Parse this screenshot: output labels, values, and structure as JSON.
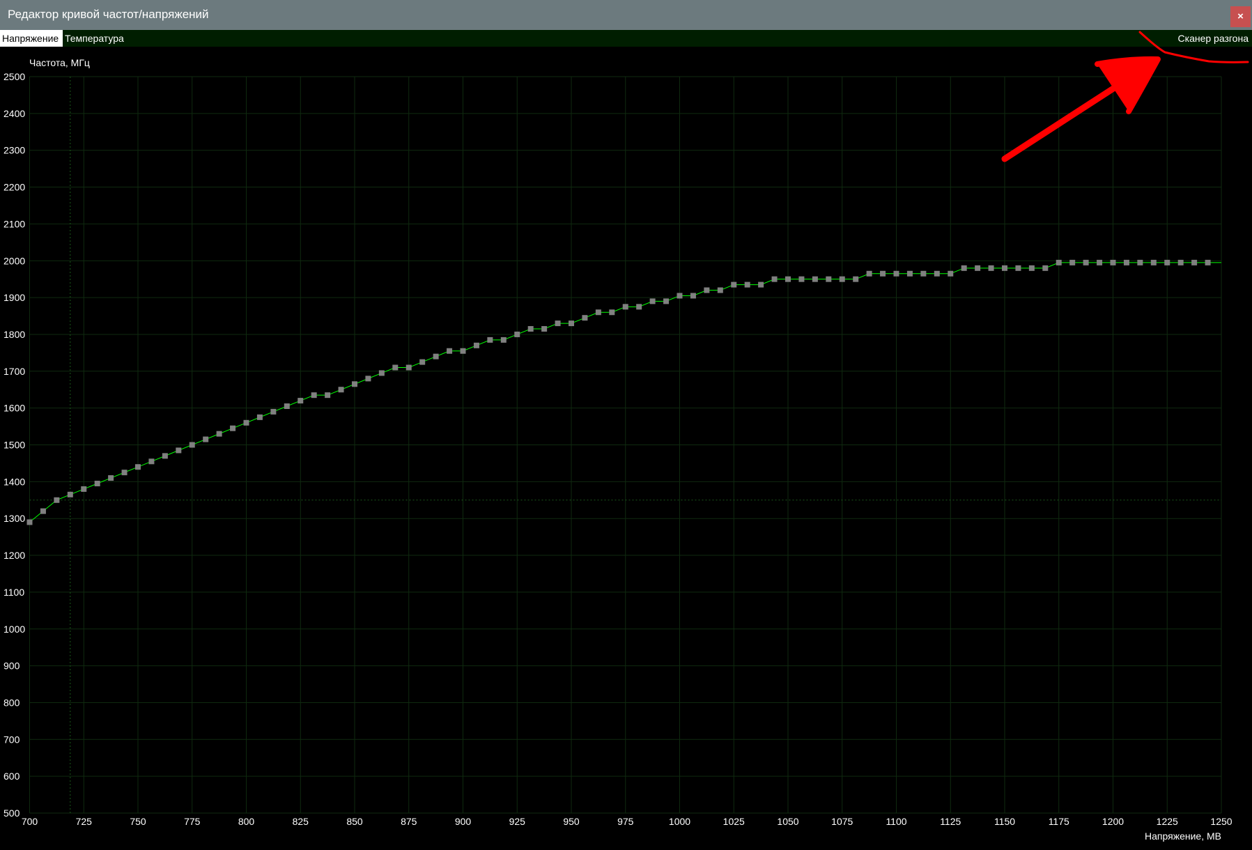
{
  "window": {
    "title": "Редактор кривой частот/напряжений",
    "close_label": "×"
  },
  "tabs": [
    {
      "label": "Напряжение",
      "active": true
    },
    {
      "label": "Температура",
      "active": false
    }
  ],
  "scanner_link": "Сканер разгона",
  "colors": {
    "titlebar": "#6c7a7e",
    "close": "#c75050",
    "tabbar": "#001e00",
    "curve": "#00ff00",
    "point": "#808080",
    "grid": "#0f2a0f",
    "annotation": "#ff0000"
  },
  "annotation": {
    "type": "hand-drawn red arrow pointing to scanner link",
    "icon": "arrow-icon"
  },
  "chart_data": {
    "type": "line",
    "ylabel": "Частота, МГц",
    "xlabel": "Напряжение, МВ",
    "xlim": [
      700,
      1250
    ],
    "ylim": [
      500,
      2500
    ],
    "x_ticks": [
      700,
      725,
      750,
      775,
      800,
      825,
      850,
      875,
      900,
      925,
      950,
      975,
      1000,
      1025,
      1050,
      1075,
      1100,
      1125,
      1150,
      1175,
      1200,
      1225,
      1250
    ],
    "y_ticks": [
      500,
      600,
      700,
      800,
      900,
      1000,
      1100,
      1200,
      1300,
      1400,
      1500,
      1600,
      1700,
      1800,
      1900,
      2000,
      2100,
      2200,
      2300,
      2400,
      2500
    ],
    "grid": true,
    "crosshair": {
      "voltage": 718.75,
      "frequency": 1350
    },
    "series": [
      {
        "x": [
          700,
          706.25,
          712.5,
          718.75,
          725,
          731.25,
          737.5,
          743.75,
          750,
          756.25,
          762.5,
          768.75,
          775,
          781.25,
          787.5,
          793.75,
          800,
          806.25,
          812.5,
          818.75,
          825,
          831.25,
          837.5,
          843.75,
          850,
          856.25,
          862.5,
          868.75,
          875,
          881.25,
          887.5,
          893.75,
          900,
          906.25,
          912.5,
          918.75,
          925,
          931.25,
          937.5,
          943.75,
          950,
          956.25,
          962.5,
          968.75,
          975,
          981.25,
          987.5,
          993.75,
          1000,
          1006.25,
          1012.5,
          1018.75,
          1025,
          1031.25,
          1037.5,
          1043.75,
          1050,
          1056.25,
          1062.5,
          1068.75,
          1075,
          1081.25,
          1087.5,
          1093.75,
          1100,
          1106.25,
          1112.5,
          1118.75,
          1125,
          1131.25,
          1137.5,
          1143.75,
          1150,
          1156.25,
          1162.5,
          1168.75,
          1175,
          1181.25,
          1187.5,
          1193.75,
          1200,
          1206.25,
          1212.5,
          1218.75,
          1225,
          1231.25,
          1237.5,
          1243.75
        ],
        "y": [
          1290,
          1320,
          1350,
          1365,
          1380,
          1395,
          1410,
          1425,
          1440,
          1455,
          1470,
          1485,
          1500,
          1515,
          1530,
          1545,
          1560,
          1575,
          1590,
          1605,
          1620,
          1635,
          1635,
          1650,
          1665,
          1680,
          1695,
          1710,
          1710,
          1725,
          1740,
          1755,
          1755,
          1770,
          1785,
          1785,
          1800,
          1815,
          1815,
          1830,
          1830,
          1845,
          1860,
          1860,
          1875,
          1875,
          1890,
          1890,
          1905,
          1905,
          1920,
          1920,
          1935,
          1935,
          1935,
          1950,
          1950,
          1950,
          1950,
          1950,
          1950,
          1950,
          1965,
          1965,
          1965,
          1965,
          1965,
          1965,
          1965,
          1980,
          1980,
          1980,
          1980,
          1980,
          1980,
          1980,
          1995,
          1995,
          1995,
          1995,
          1995,
          1995,
          1995,
          1995,
          1995,
          1995,
          1995,
          1995
        ]
      }
    ]
  }
}
